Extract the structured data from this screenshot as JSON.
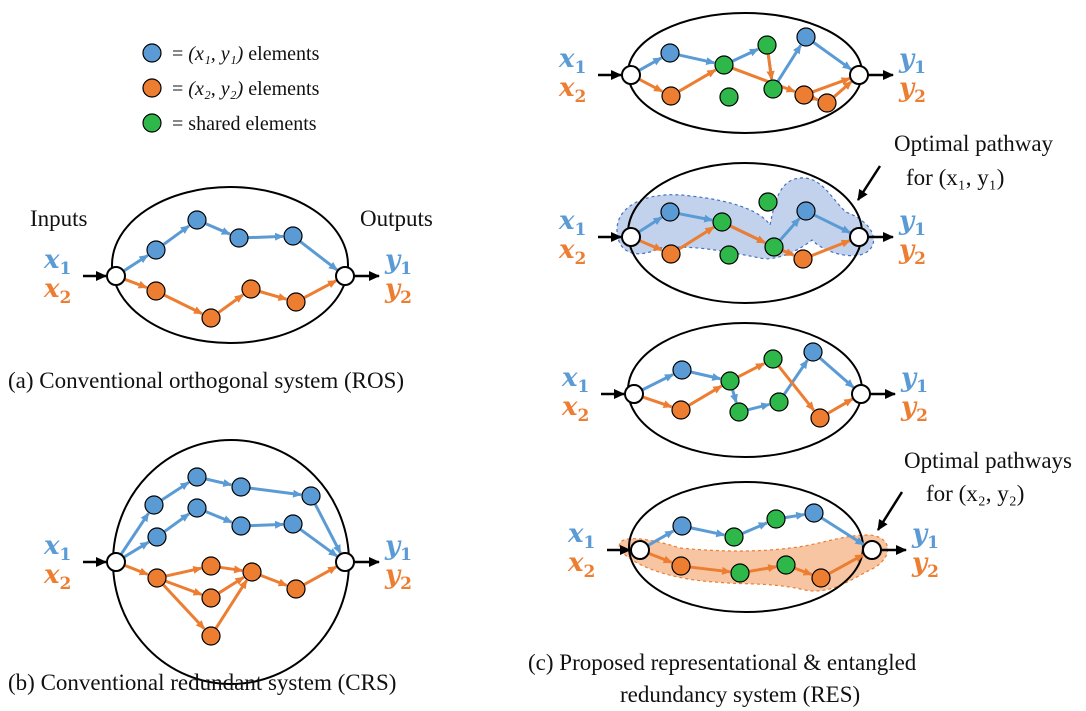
{
  "colors": {
    "blue": "#5b9bd5",
    "orange": "#ed7d31",
    "green": "#2eb84a",
    "blue_shade": "#b4c7e7",
    "orange_shade": "#f4b183"
  },
  "legend": [
    {
      "color": "blue",
      "prefix": "= ",
      "math": "(x₁, y₁)",
      "suffix": " elements"
    },
    {
      "color": "orange",
      "prefix": "= ",
      "math": "(x₂, y₂)",
      "suffix": " elements"
    },
    {
      "color": "green",
      "prefix": "= ",
      "math": "",
      "suffix": "shared elements"
    }
  ],
  "labels": {
    "inputs": "Inputs",
    "outputs": "Outputs",
    "x": "x",
    "y": "y",
    "sub1": "1",
    "sub2": "2"
  },
  "captions": {
    "a": "(a) Conventional orthogonal system (ROS)",
    "b": "(b) Conventional redundant system (CRS)",
    "c_line1": "(c) Proposed representational & entangled",
    "c_line2": "redundancy system (RES)"
  },
  "annotations": {
    "opt1_line1": "Optimal pathway",
    "opt1_line2": "for (x₁, y₁)",
    "opt2_line1": "Optimal pathways",
    "opt2_line2": "for (x₂, y₂)"
  }
}
